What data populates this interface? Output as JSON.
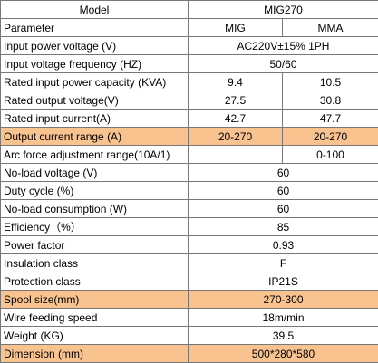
{
  "table": {
    "rows": [
      {
        "cells": [
          "Model",
          "MIG270"
        ]
      },
      {
        "cells": [
          "Parameter",
          "MIG",
          "MMA"
        ]
      },
      {
        "cells": [
          "Input power voltage (V)",
          "AC220V±15% 1PH"
        ]
      },
      {
        "cells": [
          "Input voltage frequency (HZ)",
          "50/60"
        ]
      },
      {
        "cells": [
          "Rated input power capacity (KVA)",
          "9.4",
          "10.5"
        ]
      },
      {
        "cells": [
          "Rated output voltage(V)",
          "27.5",
          "30.8"
        ]
      },
      {
        "cells": [
          "Rated input current(A)",
          "42.7",
          "47.7"
        ]
      },
      {
        "cells": [
          "Output current range (A)",
          "20-270",
          "20-270"
        ],
        "color": "#f9c38f"
      },
      {
        "cells": [
          "Arc force adjustment range(10A/1)",
          null,
          "0-100"
        ]
      },
      {
        "cells": [
          "No-load voltage (V)",
          "60"
        ]
      },
      {
        "cells": [
          "Duty cycle (%)",
          "60"
        ]
      },
      {
        "cells": [
          "No-load consumption (W)",
          "60"
        ]
      },
      {
        "cells": [
          "Efficiency（%）",
          "85"
        ]
      },
      {
        "cells": [
          "Power factor",
          "0.93"
        ]
      },
      {
        "cells": [
          "Insulation class",
          "F"
        ]
      },
      {
        "cells": [
          "Protection class",
          "IP21S"
        ]
      },
      {
        "cells": [
          "Spool size(mm)",
          "270-300"
        ],
        "color": "#f9c38f"
      },
      {
        "cells": [
          "Wire feeding speed",
          "18m/min"
        ]
      },
      {
        "cells": [
          "Weight (KG)",
          "39.5"
        ]
      },
      {
        "cells": [
          "Dimension (mm)",
          "500*280*580"
        ],
        "color": "#f9c38f"
      }
    ]
  }
}
